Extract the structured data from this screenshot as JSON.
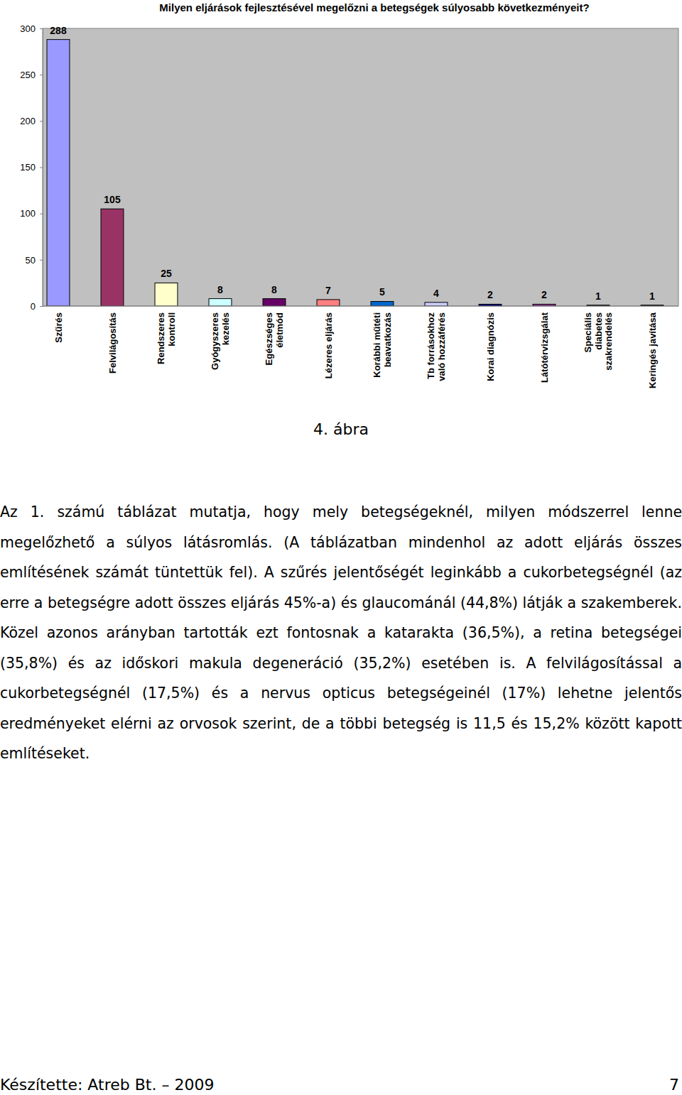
{
  "chart_data": {
    "type": "bar",
    "title": "Milyen eljárások fejlesztésével megelőzni a betegségek súlyosabb következményeit?",
    "categories": [
      "Szűrés",
      "Felvilágosítás",
      "Rendszeres kontroll",
      "Gyógyszeres kezelés",
      "Egészséges életmód",
      "Lézeres eljárás",
      "Korábbi műtéti beavatkozás",
      "Tb forrásokhoz való hozzáférés",
      "Korai diagnózis",
      "Látótérvizsgálat",
      "Speciális diabetes szakrendelés",
      "Keringés javítása"
    ],
    "values": [
      288,
      105,
      25,
      8,
      8,
      7,
      5,
      4,
      2,
      2,
      1,
      1
    ],
    "colors": [
      "#9999ff",
      "#993366",
      "#ffffcc",
      "#ccffff",
      "#660066",
      "#ff8080",
      "#0066cc",
      "#ccccff",
      "#000080",
      "#993399",
      "#333333",
      "#222222"
    ],
    "ylim": [
      0,
      300
    ],
    "yticks": [
      0,
      50,
      100,
      150,
      200,
      250,
      300
    ],
    "grid": false,
    "data_labels": true
  },
  "caption": "4. ábra",
  "paragraph": "Az 1. számú táblázat mutatja, hogy mely betegségeknél, milyen módszerrel lenne megelőzhető a súlyos látásromlás. (A táblázatban mindenhol az adott eljárás összes említésének számát tüntettük fel). A szűrés jelentőségét leginkább a cukorbetegségnél (az erre a betegségre adott összes eljárás 45%-a) és glaucománál (44,8%) látják a szakemberek. Közel azonos arányban tartották ezt fontosnak a katarakta (36,5%), a retina betegségei (35,8%) és az időskori makula degeneráció (35,2%) esetében is. A felvilágosítással a cukorbetegségnél (17,5%) és a nervus opticus betegségeinél (17%) lehetne jelentős eredményeket elérni az orvosok szerint, de a többi betegség is 11,5 és 15,2% között kapott említéseket.",
  "footer": {
    "credit": "Készítette: Atreb Bt. – 2009",
    "page": 7
  }
}
